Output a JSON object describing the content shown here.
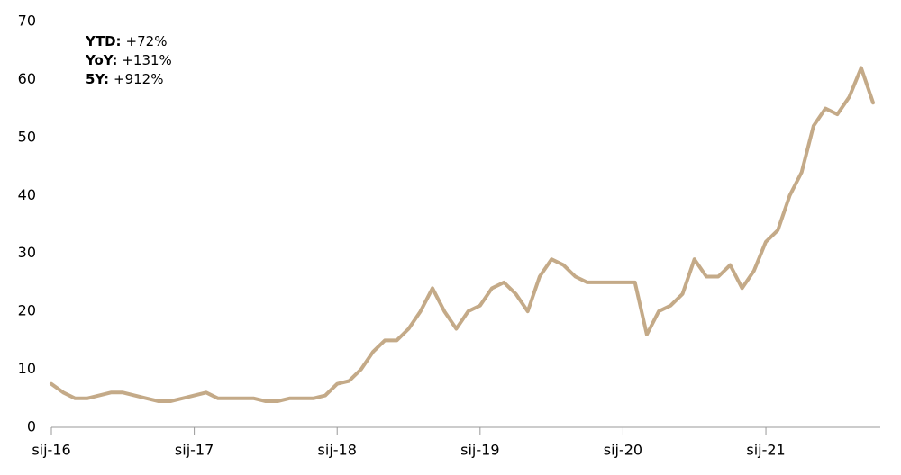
{
  "chart_data": {
    "type": "line",
    "annotations": [
      {
        "label": "YTD:",
        "value": "+72%"
      },
      {
        "label": "YoY:",
        "value": "+131%"
      },
      {
        "label": "5Y:",
        "value": "+912%"
      }
    ],
    "x": [
      "2016-01",
      "2016-02",
      "2016-03",
      "2016-04",
      "2016-05",
      "2016-06",
      "2016-07",
      "2016-08",
      "2016-09",
      "2016-10",
      "2016-11",
      "2016-12",
      "2017-01",
      "2017-02",
      "2017-03",
      "2017-04",
      "2017-05",
      "2017-06",
      "2017-07",
      "2017-08",
      "2017-09",
      "2017-10",
      "2017-11",
      "2017-12",
      "2018-01",
      "2018-02",
      "2018-03",
      "2018-04",
      "2018-05",
      "2018-06",
      "2018-07",
      "2018-08",
      "2018-09",
      "2018-10",
      "2018-11",
      "2018-12",
      "2019-01",
      "2019-02",
      "2019-03",
      "2019-04",
      "2019-05",
      "2019-06",
      "2019-07",
      "2019-08",
      "2019-09",
      "2019-10",
      "2019-11",
      "2019-12",
      "2020-01",
      "2020-02",
      "2020-03",
      "2020-04",
      "2020-05",
      "2020-06",
      "2020-07",
      "2020-08",
      "2020-09",
      "2020-10",
      "2020-11",
      "2020-12",
      "2021-01",
      "2021-02",
      "2021-03",
      "2021-04",
      "2021-05",
      "2021-06",
      "2021-07",
      "2021-08",
      "2021-09",
      "2021-10"
    ],
    "series": [
      {
        "color": "#c4aa88",
        "values": [
          7.5,
          6,
          5,
          5,
          5.5,
          6,
          6,
          5.5,
          5,
          4.5,
          4.5,
          5,
          5.5,
          6,
          5,
          5,
          5,
          5,
          4.5,
          4.5,
          5,
          5,
          5,
          5.5,
          7.5,
          8,
          10,
          13,
          15,
          15,
          17,
          20,
          24,
          20,
          17,
          20,
          21,
          24,
          25,
          23,
          20,
          26,
          29,
          28,
          26,
          25,
          25,
          25,
          25,
          25,
          16,
          20,
          21,
          23,
          29,
          26,
          26,
          28,
          24,
          27,
          32,
          34,
          40,
          44,
          52,
          55,
          54,
          57,
          62,
          56
        ]
      }
    ],
    "xlim": [
      "2016-01",
      "2021-10"
    ],
    "xticks": [
      {
        "value": "2016-01",
        "label": "sij-16"
      },
      {
        "value": "2017-01",
        "label": "sij-17"
      },
      {
        "value": "2018-01",
        "label": "sij-18"
      },
      {
        "value": "2019-01",
        "label": "sij-19"
      },
      {
        "value": "2020-01",
        "label": "sij-20"
      },
      {
        "value": "2021-01",
        "label": "sij-21"
      }
    ],
    "ylim": [
      0,
      70
    ],
    "yticks": [
      0,
      10,
      20,
      30,
      40,
      50,
      60,
      70
    ],
    "grid": false
  }
}
